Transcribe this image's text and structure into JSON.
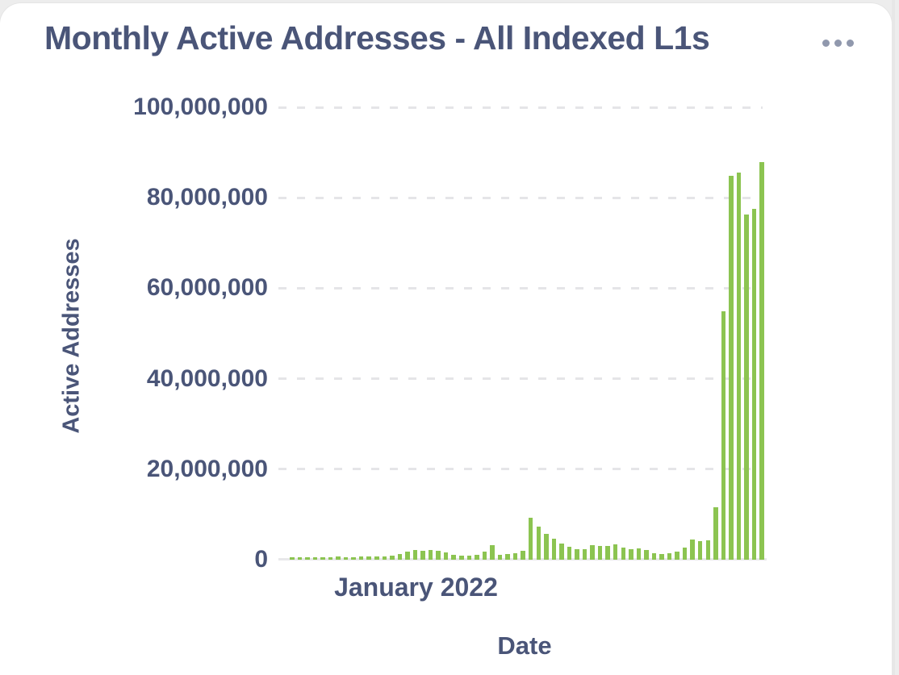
{
  "card": {
    "title": "Monthly Active Addresses - All Indexed L1s",
    "menu_icon": "ellipsis-icon"
  },
  "colors": {
    "title_text": "#4a5578",
    "bar": "#8cc451",
    "gridline": "#e5e5e8",
    "axis_line": "#e8e8ea",
    "menu_dots": "#9098ad",
    "card_background": "#ffffff",
    "page_background": "#ededed"
  },
  "chart_data": {
    "type": "bar",
    "title": "Monthly Active Addresses - All Indexed L1s",
    "xlabel": "Date",
    "ylabel": "Active Addresses",
    "ylim": [
      0,
      100000000
    ],
    "y_ticks": [
      0,
      20000000,
      40000000,
      60000000,
      80000000,
      100000000
    ],
    "y_tick_labels": [
      "0",
      "20,000,000",
      "40,000,000",
      "60,000,000",
      "80,000,000",
      "100,000,000"
    ],
    "grid": "horizontal dashed",
    "legend": "none",
    "bar_color": "#8cc451",
    "x_tick_labels": [
      {
        "label": "January 2022",
        "bar_index": 16
      }
    ],
    "values": [
      600000,
      600000,
      600000,
      620000,
      600000,
      610000,
      630000,
      600000,
      620000,
      650000,
      700000,
      650000,
      700000,
      900000,
      1300000,
      1800000,
      2100000,
      2000000,
      2100000,
      1900000,
      1600000,
      1000000,
      900000,
      900000,
      1100000,
      1700000,
      3300000,
      1100000,
      1200000,
      1400000,
      1900000,
      9300000,
      7400000,
      5700000,
      4600000,
      3600000,
      2800000,
      2400000,
      2400000,
      3200000,
      3000000,
      3100000,
      3400000,
      2700000,
      2400000,
      2500000,
      2100000,
      1500000,
      1300000,
      1500000,
      1800000,
      2700000,
      4500000,
      4100000,
      4300000,
      11600000,
      54900000,
      84800000,
      85600000,
      76300000,
      77600000,
      87900000
    ]
  }
}
